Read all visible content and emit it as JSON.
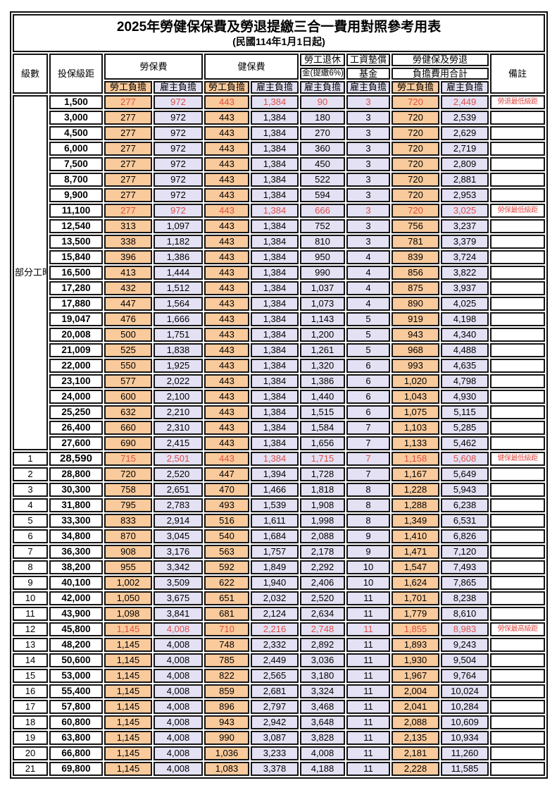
{
  "title": "2025年勞健保保費及勞退提繳三合一費用對照參考用表",
  "subtitle": "(民國114年1月1日起)",
  "colors": {
    "worker_bg": "#F9CA9C",
    "employer_bg": "#E3E1F3",
    "highlight_red": "#E0504A"
  },
  "header": {
    "level": "級數",
    "bracket": "投保級距",
    "labor_insurance": "勞保費",
    "health_insurance": "健保費",
    "pension_line1": "勞工退休",
    "pension_line2": "金(提繳6%)",
    "wage_fund_line1": "工資墊償",
    "wage_fund_line2": "基金",
    "total_line1": "勞健保及勞退",
    "total_line2": "負擔費用合計",
    "remark": "備註",
    "worker_share": "勞工負擔",
    "employer_share": "雇主負擔"
  },
  "part_time_label": "部分工時",
  "rows": [
    {
      "level": "",
      "bracket": "1,500",
      "values": [
        "277",
        "972",
        "443",
        "1,384",
        "90",
        "3",
        "720",
        "2,449"
      ],
      "remark": "勞退最低級距",
      "highlight": true
    },
    {
      "level": "",
      "bracket": "3,000",
      "values": [
        "277",
        "972",
        "443",
        "1,384",
        "180",
        "3",
        "720",
        "2,539"
      ],
      "remark": "",
      "highlight": false
    },
    {
      "level": "",
      "bracket": "4,500",
      "values": [
        "277",
        "972",
        "443",
        "1,384",
        "270",
        "3",
        "720",
        "2,629"
      ],
      "remark": "",
      "highlight": false
    },
    {
      "level": "",
      "bracket": "6,000",
      "values": [
        "277",
        "972",
        "443",
        "1,384",
        "360",
        "3",
        "720",
        "2,719"
      ],
      "remark": "",
      "highlight": false
    },
    {
      "level": "",
      "bracket": "7,500",
      "values": [
        "277",
        "972",
        "443",
        "1,384",
        "450",
        "3",
        "720",
        "2,809"
      ],
      "remark": "",
      "highlight": false
    },
    {
      "level": "",
      "bracket": "8,700",
      "values": [
        "277",
        "972",
        "443",
        "1,384",
        "522",
        "3",
        "720",
        "2,881"
      ],
      "remark": "",
      "highlight": false
    },
    {
      "level": "",
      "bracket": "9,900",
      "values": [
        "277",
        "972",
        "443",
        "1,384",
        "594",
        "3",
        "720",
        "2,953"
      ],
      "remark": "",
      "highlight": false
    },
    {
      "level": "",
      "bracket": "11,100",
      "values": [
        "277",
        "972",
        "443",
        "1,384",
        "666",
        "3",
        "720",
        "3,025"
      ],
      "remark": "勞保最低級距",
      "highlight": true
    },
    {
      "level": "",
      "bracket": "12,540",
      "values": [
        "313",
        "1,097",
        "443",
        "1,384",
        "752",
        "3",
        "756",
        "3,237"
      ],
      "remark": "",
      "highlight": false
    },
    {
      "level": "",
      "bracket": "13,500",
      "values": [
        "338",
        "1,182",
        "443",
        "1,384",
        "810",
        "3",
        "781",
        "3,379"
      ],
      "remark": "",
      "highlight": false
    },
    {
      "level": "",
      "bracket": "15,840",
      "values": [
        "396",
        "1,386",
        "443",
        "1,384",
        "950",
        "4",
        "839",
        "3,724"
      ],
      "remark": "",
      "highlight": false
    },
    {
      "level": "",
      "bracket": "16,500",
      "values": [
        "413",
        "1,444",
        "443",
        "1,384",
        "990",
        "4",
        "856",
        "3,822"
      ],
      "remark": "",
      "highlight": false
    },
    {
      "level": "",
      "bracket": "17,280",
      "values": [
        "432",
        "1,512",
        "443",
        "1,384",
        "1,037",
        "4",
        "875",
        "3,937"
      ],
      "remark": "",
      "highlight": false
    },
    {
      "level": "",
      "bracket": "17,880",
      "values": [
        "447",
        "1,564",
        "443",
        "1,384",
        "1,073",
        "4",
        "890",
        "4,025"
      ],
      "remark": "",
      "highlight": false
    },
    {
      "level": "",
      "bracket": "19,047",
      "values": [
        "476",
        "1,666",
        "443",
        "1,384",
        "1,143",
        "5",
        "919",
        "4,198"
      ],
      "remark": "",
      "highlight": false
    },
    {
      "level": "",
      "bracket": "20,008",
      "values": [
        "500",
        "1,751",
        "443",
        "1,384",
        "1,200",
        "5",
        "943",
        "4,340"
      ],
      "remark": "",
      "highlight": false
    },
    {
      "level": "",
      "bracket": "21,009",
      "values": [
        "525",
        "1,838",
        "443",
        "1,384",
        "1,261",
        "5",
        "968",
        "4,488"
      ],
      "remark": "",
      "highlight": false
    },
    {
      "level": "",
      "bracket": "22,000",
      "values": [
        "550",
        "1,925",
        "443",
        "1,384",
        "1,320",
        "6",
        "993",
        "4,635"
      ],
      "remark": "",
      "highlight": false
    },
    {
      "level": "",
      "bracket": "23,100",
      "values": [
        "577",
        "2,022",
        "443",
        "1,384",
        "1,386",
        "6",
        "1,020",
        "4,798"
      ],
      "remark": "",
      "highlight": false
    },
    {
      "level": "",
      "bracket": "24,000",
      "values": [
        "600",
        "2,100",
        "443",
        "1,384",
        "1,440",
        "6",
        "1,043",
        "4,930"
      ],
      "remark": "",
      "highlight": false
    },
    {
      "level": "",
      "bracket": "25,250",
      "values": [
        "632",
        "2,210",
        "443",
        "1,384",
        "1,515",
        "6",
        "1,075",
        "5,115"
      ],
      "remark": "",
      "highlight": false
    },
    {
      "level": "",
      "bracket": "26,400",
      "values": [
        "660",
        "2,310",
        "443",
        "1,384",
        "1,584",
        "7",
        "1,103",
        "5,285"
      ],
      "remark": "",
      "highlight": false
    },
    {
      "level": "",
      "bracket": "27,600",
      "values": [
        "690",
        "2,415",
        "443",
        "1,384",
        "1,656",
        "7",
        "1,133",
        "5,462"
      ],
      "remark": "",
      "highlight": false
    },
    {
      "level": "1",
      "bracket": "28,590",
      "values": [
        "715",
        "2,501",
        "443",
        "1,384",
        "1,715",
        "7",
        "1,158",
        "5,608"
      ],
      "remark": "健保最低級距",
      "highlight": true
    },
    {
      "level": "2",
      "bracket": "28,800",
      "values": [
        "720",
        "2,520",
        "447",
        "1,394",
        "1,728",
        "7",
        "1,167",
        "5,649"
      ],
      "remark": "",
      "highlight": false
    },
    {
      "level": "3",
      "bracket": "30,300",
      "values": [
        "758",
        "2,651",
        "470",
        "1,466",
        "1,818",
        "8",
        "1,228",
        "5,943"
      ],
      "remark": "",
      "highlight": false
    },
    {
      "level": "4",
      "bracket": "31,800",
      "values": [
        "795",
        "2,783",
        "493",
        "1,539",
        "1,908",
        "8",
        "1,288",
        "6,238"
      ],
      "remark": "",
      "highlight": false
    },
    {
      "level": "5",
      "bracket": "33,300",
      "values": [
        "833",
        "2,914",
        "516",
        "1,611",
        "1,998",
        "8",
        "1,349",
        "6,531"
      ],
      "remark": "",
      "highlight": false
    },
    {
      "level": "6",
      "bracket": "34,800",
      "values": [
        "870",
        "3,045",
        "540",
        "1,684",
        "2,088",
        "9",
        "1,410",
        "6,826"
      ],
      "remark": "",
      "highlight": false
    },
    {
      "level": "7",
      "bracket": "36,300",
      "values": [
        "908",
        "3,176",
        "563",
        "1,757",
        "2,178",
        "9",
        "1,471",
        "7,120"
      ],
      "remark": "",
      "highlight": false
    },
    {
      "level": "8",
      "bracket": "38,200",
      "values": [
        "955",
        "3,342",
        "592",
        "1,849",
        "2,292",
        "10",
        "1,547",
        "7,493"
      ],
      "remark": "",
      "highlight": false
    },
    {
      "level": "9",
      "bracket": "40,100",
      "values": [
        "1,002",
        "3,509",
        "622",
        "1,940",
        "2,406",
        "10",
        "1,624",
        "7,865"
      ],
      "remark": "",
      "highlight": false
    },
    {
      "level": "10",
      "bracket": "42,000",
      "values": [
        "1,050",
        "3,675",
        "651",
        "2,032",
        "2,520",
        "11",
        "1,701",
        "8,238"
      ],
      "remark": "",
      "highlight": false
    },
    {
      "level": "11",
      "bracket": "43,900",
      "values": [
        "1,098",
        "3,841",
        "681",
        "2,124",
        "2,634",
        "11",
        "1,779",
        "8,610"
      ],
      "remark": "",
      "highlight": false
    },
    {
      "level": "12",
      "bracket": "45,800",
      "values": [
        "1,145",
        "4,008",
        "710",
        "2,216",
        "2,748",
        "11",
        "1,855",
        "8,983"
      ],
      "remark": "勞保最高級距",
      "highlight": true
    },
    {
      "level": "13",
      "bracket": "48,200",
      "values": [
        "1,145",
        "4,008",
        "748",
        "2,332",
        "2,892",
        "11",
        "1,893",
        "9,243"
      ],
      "remark": "",
      "highlight": false
    },
    {
      "level": "14",
      "bracket": "50,600",
      "values": [
        "1,145",
        "4,008",
        "785",
        "2,449",
        "3,036",
        "11",
        "1,930",
        "9,504"
      ],
      "remark": "",
      "highlight": false
    },
    {
      "level": "15",
      "bracket": "53,000",
      "values": [
        "1,145",
        "4,008",
        "822",
        "2,565",
        "3,180",
        "11",
        "1,967",
        "9,764"
      ],
      "remark": "",
      "highlight": false
    },
    {
      "level": "16",
      "bracket": "55,400",
      "values": [
        "1,145",
        "4,008",
        "859",
        "2,681",
        "3,324",
        "11",
        "2,004",
        "10,024"
      ],
      "remark": "",
      "highlight": false
    },
    {
      "level": "17",
      "bracket": "57,800",
      "values": [
        "1,145",
        "4,008",
        "896",
        "2,797",
        "3,468",
        "11",
        "2,041",
        "10,284"
      ],
      "remark": "",
      "highlight": false
    },
    {
      "level": "18",
      "bracket": "60,800",
      "values": [
        "1,145",
        "4,008",
        "943",
        "2,942",
        "3,648",
        "11",
        "2,088",
        "10,609"
      ],
      "remark": "",
      "highlight": false
    },
    {
      "level": "19",
      "bracket": "63,800",
      "values": [
        "1,145",
        "4,008",
        "990",
        "3,087",
        "3,828",
        "11",
        "2,135",
        "10,934"
      ],
      "remark": "",
      "highlight": false
    },
    {
      "level": "20",
      "bracket": "66,800",
      "values": [
        "1,145",
        "4,008",
        "1,036",
        "3,233",
        "4,008",
        "11",
        "2,181",
        "11,260"
      ],
      "remark": "",
      "highlight": false
    },
    {
      "level": "21",
      "bracket": "69,800",
      "values": [
        "1,145",
        "4,008",
        "1,083",
        "3,378",
        "4,188",
        "11",
        "2,228",
        "11,585"
      ],
      "remark": "",
      "highlight": false
    }
  ]
}
